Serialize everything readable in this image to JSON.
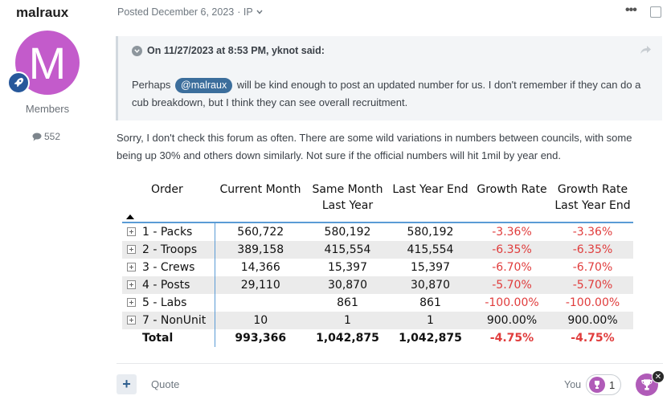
{
  "author": {
    "name": "malraux",
    "avatar_letter": "M",
    "avatar_color": "#c35bcb",
    "rank_icon": "rocket-icon",
    "group": "Members",
    "post_count": "552"
  },
  "post": {
    "posted_label": "Posted December 6, 2023",
    "ip_label": "· IP",
    "more_label": "•••"
  },
  "quote": {
    "header": "On 11/27/2023 at 8:53 PM, yknot said:",
    "text_before": "Perhaps",
    "mention": "@malraux",
    "text_after": "will be kind enough to post an updated number for us. I don't remember if they can do a cub breakdown, but I think they can see overall recruitment."
  },
  "body": {
    "text": "Sorry, I don't check this forum as often. There are some wild variations in numbers between councils, with some being up 30% and others down similarly. Not sure if the official numbers will hit 1mil by year end."
  },
  "table": {
    "headers": {
      "order": "Order",
      "current_month": "Current Month",
      "same_month_1": "Same Month",
      "same_month_2": "Last Year",
      "last_year_end": "Last Year End",
      "growth_rate": "Growth Rate",
      "growth_last_1": "Growth Rate",
      "growth_last_2": "Last Year End"
    },
    "rows": [
      {
        "order": "1 - Packs",
        "current": "560,722",
        "same": "580,192",
        "lye": "580,192",
        "growth": "-3.36%",
        "growth_lye": "-3.36%"
      },
      {
        "order": "2 - Troops",
        "current": "389,158",
        "same": "415,554",
        "lye": "415,554",
        "growth": "-6.35%",
        "growth_lye": "-6.35%"
      },
      {
        "order": "3 - Crews",
        "current": "14,366",
        "same": "15,397",
        "lye": "15,397",
        "growth": "-6.70%",
        "growth_lye": "-6.70%"
      },
      {
        "order": "4 - Posts",
        "current": "29,110",
        "same": "30,870",
        "lye": "30,870",
        "growth": "-5.70%",
        "growth_lye": "-5.70%"
      },
      {
        "order": "5 - Labs",
        "current": "",
        "same": "861",
        "lye": "861",
        "growth": "-100.00%",
        "growth_lye": "-100.00%"
      },
      {
        "order": "7 - NonUnit",
        "current": "10",
        "same": "1",
        "lye": "1",
        "growth": "900.00%",
        "growth_lye": "900.00%"
      }
    ],
    "total": {
      "order": "Total",
      "current": "993,366",
      "same": "1,042,875",
      "lye": "1,042,875",
      "growth": "-4.75%",
      "growth_lye": "-4.75%"
    }
  },
  "footer": {
    "add_label": "+",
    "quote_label": "Quote",
    "you_label": "You",
    "reaction_count": "1",
    "close_label": "✕"
  },
  "colors": {
    "negative": "#e03c3c",
    "accent": "#5a9bd5",
    "mention": "#3c6e9c",
    "reaction": "#b05bb8"
  }
}
